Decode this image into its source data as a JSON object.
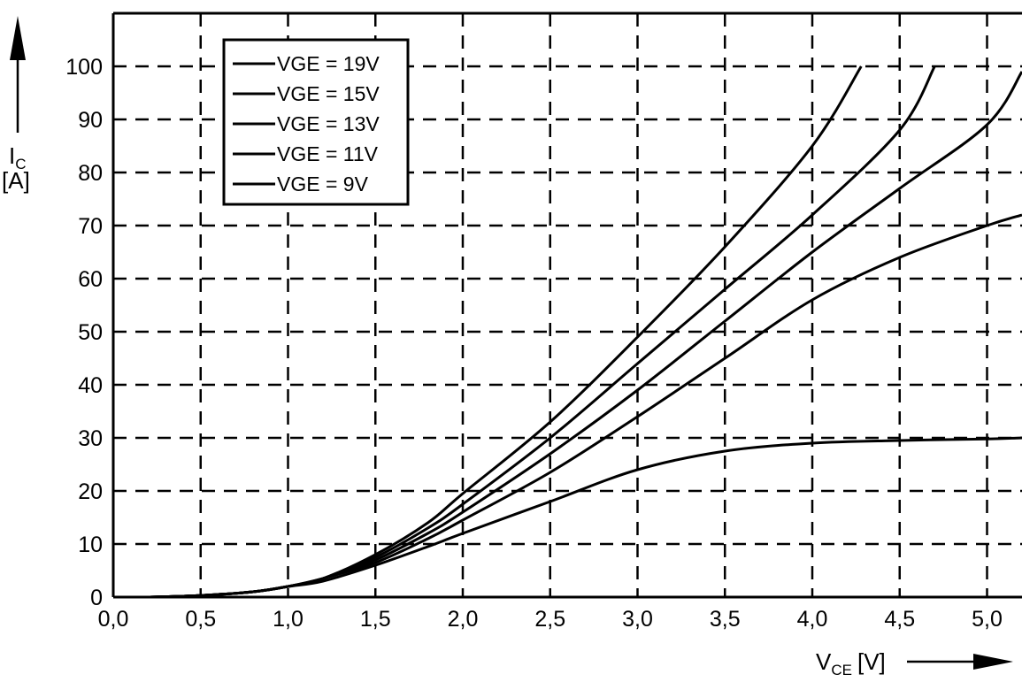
{
  "chart_data": {
    "type": "line",
    "xlabel": "V",
    "xlabel_sub": "CE",
    "xlabel_unit": "[V]",
    "ylabel": "I",
    "ylabel_sub": "C",
    "ylabel_unit": "[A]",
    "xlim": [
      0,
      5.2
    ],
    "ylim": [
      0,
      100
    ],
    "x_ticks": [
      "0,0",
      "0,5",
      "1,0",
      "1,5",
      "2,0",
      "2,5",
      "3,0",
      "3,5",
      "4,0",
      "4,5",
      "5,0"
    ],
    "y_ticks": [
      "0",
      "10",
      "20",
      "30",
      "40",
      "50",
      "60",
      "70",
      "80",
      "90",
      "100"
    ],
    "grid": "dashed",
    "legend_position": "top-left",
    "series": [
      {
        "name": "VGE = 19V",
        "x": [
          0.2,
          0.5,
          0.8,
          1.0,
          1.2,
          1.5,
          1.8,
          2.0,
          2.5,
          3.0,
          3.5,
          4.0,
          4.28
        ],
        "y": [
          0,
          0.3,
          1,
          2,
          3.5,
          8,
          14,
          19.5,
          33,
          49,
          66,
          85,
          100
        ]
      },
      {
        "name": "VGE = 15V",
        "x": [
          0.2,
          0.5,
          0.8,
          1.0,
          1.2,
          1.5,
          1.8,
          2.0,
          2.5,
          3.0,
          3.5,
          4.0,
          4.5,
          4.7
        ],
        "y": [
          0,
          0.3,
          1,
          2,
          3.5,
          7.5,
          13,
          17.5,
          30,
          44,
          58,
          72,
          88,
          100
        ]
      },
      {
        "name": "VGE = 13V",
        "x": [
          0.2,
          0.5,
          0.8,
          1.0,
          1.2,
          1.5,
          1.8,
          2.0,
          2.5,
          3.0,
          3.5,
          4.0,
          4.5,
          5.0,
          5.2
        ],
        "y": [
          0,
          0.3,
          1,
          2,
          3.5,
          7,
          12,
          16,
          27,
          39,
          52,
          65,
          77,
          89,
          99
        ]
      },
      {
        "name": "VGE = 11V",
        "x": [
          0.2,
          0.5,
          0.8,
          1.0,
          1.2,
          1.5,
          1.8,
          2.0,
          2.5,
          3.0,
          3.5,
          4.0,
          4.5,
          5.0,
          5.2
        ],
        "y": [
          0,
          0.3,
          1,
          2,
          3.5,
          6.5,
          11,
          14.5,
          23.5,
          34,
          45,
          56,
          64,
          70,
          72
        ]
      },
      {
        "name": "VGE = 9V",
        "x": [
          0.2,
          0.5,
          0.8,
          1.0,
          1.2,
          1.5,
          1.8,
          2.0,
          2.5,
          3.0,
          3.5,
          4.0,
          4.5,
          5.0,
          5.2
        ],
        "y": [
          0,
          0.3,
          1,
          2,
          3,
          6,
          9.5,
          12,
          18,
          24,
          27.5,
          29,
          29.5,
          29.8,
          30
        ]
      }
    ]
  }
}
